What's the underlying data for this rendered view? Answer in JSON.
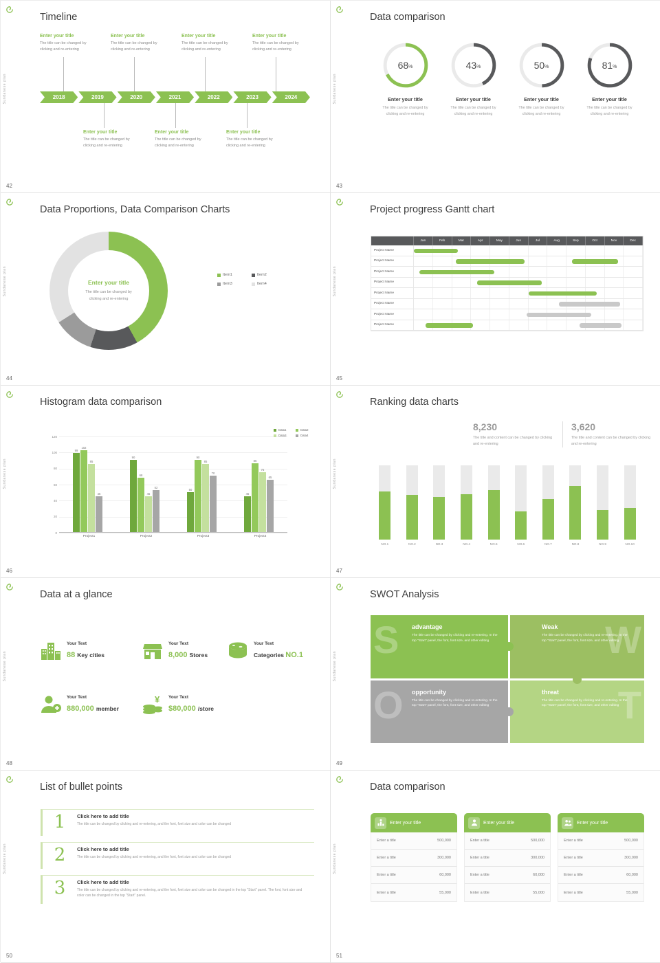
{
  "meta": {
    "brand_color": "#8CC152",
    "dark_color": "#58595B",
    "sidebar_text": "Sundanese plan"
  },
  "slides": {
    "s42": {
      "page": "42",
      "title": "Timeline",
      "years": [
        "2018",
        "2019",
        "2020",
        "2021",
        "2022",
        "2023",
        "2024"
      ],
      "top_entries": [
        {
          "title": "Enter your title",
          "body": "The title can be changed by clicking and re-entering"
        },
        {
          "title": "Enter your title",
          "body": "The title can be changed by clicking and re-entering"
        },
        {
          "title": "Enter your title",
          "body": "The title can be changed by clicking and re-entering"
        },
        {
          "title": "Enter your title",
          "body": "The title can be changed by clicking and re-entering"
        }
      ],
      "bottom_entries": [
        {
          "title": "Enter your title",
          "body": "The title can be changed by clicking and re-entering"
        },
        {
          "title": "Enter your title",
          "body": "The title can be changed by clicking and re-entering"
        },
        {
          "title": "Enter your title",
          "body": "The title can be changed by clicking and re-entering"
        }
      ]
    },
    "s43": {
      "page": "43",
      "title": "Data comparison",
      "chart_data": {
        "type": "donut-progress",
        "unit": "%",
        "values": [
          68,
          43,
          50,
          81
        ],
        "accent_index": 0
      },
      "items": [
        {
          "percent": 68,
          "accent": true,
          "title": "Enter your title",
          "body": "The title can be changed by clicking and re-entering"
        },
        {
          "percent": 43,
          "accent": false,
          "title": "Enter your title",
          "body": "The title can be changed by clicking and re-entering"
        },
        {
          "percent": 50,
          "accent": false,
          "title": "Enter your title",
          "body": "The title can be changed by clicking and re-entering"
        },
        {
          "percent": 81,
          "accent": false,
          "title": "Enter your title",
          "body": "The title can be changed by clicking and re-entering"
        }
      ]
    },
    "s44": {
      "page": "44",
      "title": "Data Proportions, Data Comparison Charts",
      "center_title": "Enter your title",
      "center_body": "The title can be changed by clicking and re-entering",
      "chart_data": {
        "type": "pie",
        "donut": true,
        "labels": [
          "Item1",
          "Item2",
          "Item3",
          "Item4"
        ],
        "values": [
          42,
          13,
          11,
          34
        ],
        "colors": [
          "#8CC152",
          "#58595B",
          "#9B9B9B",
          "#E2E2E2"
        ]
      }
    },
    "s45": {
      "page": "45",
      "title": "Project progress Gantt chart",
      "chart_data": {
        "type": "gantt",
        "months": [
          "Jan",
          "Feb",
          "Mar",
          "Apr",
          "May",
          "Jun",
          "Jul",
          "Aug",
          "Sep",
          "Oct",
          "Nov",
          "Dec"
        ],
        "row_label": "Project Name",
        "rows": 8,
        "bars": [
          {
            "row": 0,
            "start": 0,
            "span": 2.3,
            "color": "green"
          },
          {
            "row": 1,
            "start": 2.2,
            "span": 3.6,
            "color": "green"
          },
          {
            "row": 1,
            "start": 8.3,
            "span": 2.4,
            "color": "green"
          },
          {
            "row": 2,
            "start": 0.3,
            "span": 3.9,
            "color": "green"
          },
          {
            "row": 3,
            "start": 3.3,
            "span": 3.4,
            "color": "green"
          },
          {
            "row": 4,
            "start": 6.0,
            "span": 3.6,
            "color": "green"
          },
          {
            "row": 5,
            "start": 7.6,
            "span": 3.2,
            "color": "gray"
          },
          {
            "row": 6,
            "start": 5.9,
            "span": 3.4,
            "color": "gray"
          },
          {
            "row": 7,
            "start": 0.6,
            "span": 2.5,
            "color": "green"
          },
          {
            "row": 7,
            "start": 8.7,
            "span": 2.2,
            "color": "gray"
          }
        ]
      }
    },
    "s46": {
      "page": "46",
      "title": "Histogram data comparison",
      "chart_data": {
        "type": "bar",
        "categories": [
          "Project1",
          "Project2",
          "Project3",
          "Project4"
        ],
        "series": [
          {
            "name": "Data1",
            "color": "#6FA83C",
            "values": [
              99,
              90,
              50,
              45
            ]
          },
          {
            "name": "Data2",
            "color": "#93C95B",
            "values": [
              102,
              68,
              90,
              86
            ]
          },
          {
            "name": "Data3",
            "color": "#C4E09E",
            "values": [
              85,
              45,
              85,
              75
            ]
          },
          {
            "name": "Data4",
            "color": "#A6A6A6",
            "values": [
              45,
              52,
              70,
              65
            ]
          }
        ],
        "ylim": [
          0,
          120
        ],
        "ytick": 20,
        "legend_position": "top-right",
        "grid": true
      }
    },
    "s47": {
      "page": "47",
      "title": "Ranking data charts",
      "stats": [
        {
          "value": "8,230",
          "accent": true,
          "caption": "The title and content can be changed by clicking and re-entering"
        },
        {
          "value": "3,620",
          "accent": false,
          "caption": "The title and content can be changed by clicking and re-entering"
        }
      ],
      "chart_data": {
        "type": "bar",
        "categories": [
          "NO.1",
          "NO.2",
          "NO.3",
          "NO.4",
          "NO.5",
          "NO.6",
          "NO.7",
          "NO.8",
          "NO.9",
          "NO.10"
        ],
        "values": [
          65,
          60,
          57,
          61,
          67,
          38,
          55,
          72,
          40,
          43
        ],
        "ylim": [
          0,
          100
        ],
        "track_background": true
      }
    },
    "s48": {
      "page": "48",
      "title": "Data at a glance",
      "items": [
        {
          "icon": "city-icon",
          "label": "Your Text",
          "parts": [
            {
              "t": "88 ",
              "accent": true
            },
            {
              "t": "Key cities",
              "accent": false
            }
          ]
        },
        {
          "icon": "store-icon",
          "label": "Your Text",
          "parts": [
            {
              "t": "8,000 ",
              "accent": true
            },
            {
              "t": "Stores",
              "accent": false
            }
          ]
        },
        {
          "icon": "categories-icon",
          "label": "Your Text",
          "parts": [
            {
              "t": "Categories ",
              "accent": false
            },
            {
              "t": "NO.1",
              "accent": true
            }
          ]
        },
        {
          "icon": "member-icon",
          "label": "Your Text",
          "parts": [
            {
              "t": "880,000 ",
              "accent": true
            },
            {
              "t": "member",
              "accent": false
            }
          ]
        },
        {
          "icon": "coins-icon",
          "label": "Your Text",
          "parts": [
            {
              "t": "$80,000 ",
              "accent": true
            },
            {
              "t": "/store",
              "accent": false
            }
          ]
        }
      ]
    },
    "s49": {
      "page": "49",
      "title": "SWOT Analysis",
      "quadrants": [
        {
          "letter": "S",
          "letter_pos": "left",
          "title": "advantage",
          "color": "#8CC152",
          "body": "The title can be changed by clicking and re-entering. In the top \"Start\" panel, the font, font size, and other editing"
        },
        {
          "letter": "W",
          "letter_pos": "right",
          "title": "Weak",
          "color": "#9CBF62",
          "body": "The title can be changed by clicking and re-entering. In the top \"Start\" panel, the font, font size, and other editing"
        },
        {
          "letter": "O",
          "letter_pos": "left",
          "title": "opportunity",
          "color": "#A6A6A6",
          "body": "The title can be changed by clicking and re-entering. In the top \"Start\" panel, the font, font size, and other editing"
        },
        {
          "letter": "T",
          "letter_pos": "right",
          "title": "threat",
          "color": "#B4D584",
          "body": "The title can be changed by clicking and re-entering. In the top \"Start\" panel, the font, font size, and other editing"
        }
      ]
    },
    "s50": {
      "page": "50",
      "title": "List of bullet points",
      "items": [
        {
          "num": "1",
          "title": "Click here to add title",
          "body": "The title can be changed by clicking and re-entering, and the font, font size and color can be changed"
        },
        {
          "num": "2",
          "title": "Click here to add title",
          "body": "The title can be changed by clicking and re-entering, and the font, font size and color can be changed"
        },
        {
          "num": "3",
          "title": "Click here to add title",
          "body": "The title can be changed by clicking and re-entering, and the font, font size and color can be changed in the top \"Start\" panel. The font, font size and color can be changed in the top \"Start\" panel."
        }
      ]
    },
    "s51": {
      "page": "51",
      "title": "Data comparison",
      "cards": [
        {
          "icon": "rank-person-icon",
          "header": "Enter your title",
          "rows": [
            {
              "label": "Enter a title",
              "value": "500,000"
            },
            {
              "label": "Enter a title",
              "value": "300,000"
            },
            {
              "label": "Enter a title",
              "value": "60,000"
            },
            {
              "label": "Enter a title",
              "value": "55,000"
            }
          ]
        },
        {
          "icon": "person-icon",
          "header": "Enter your title",
          "rows": [
            {
              "label": "Enter a title",
              "value": "500,000"
            },
            {
              "label": "Enter a title",
              "value": "300,000"
            },
            {
              "label": "Enter a title",
              "value": "60,000"
            },
            {
              "label": "Enter a title",
              "value": "55,000"
            }
          ]
        },
        {
          "icon": "people-icon",
          "header": "Enter your title",
          "rows": [
            {
              "label": "Enter a title",
              "value": "500,000"
            },
            {
              "label": "Enter a title",
              "value": "300,000"
            },
            {
              "label": "Enter a title",
              "value": "60,000"
            },
            {
              "label": "Enter a title",
              "value": "55,000"
            }
          ]
        }
      ]
    }
  }
}
